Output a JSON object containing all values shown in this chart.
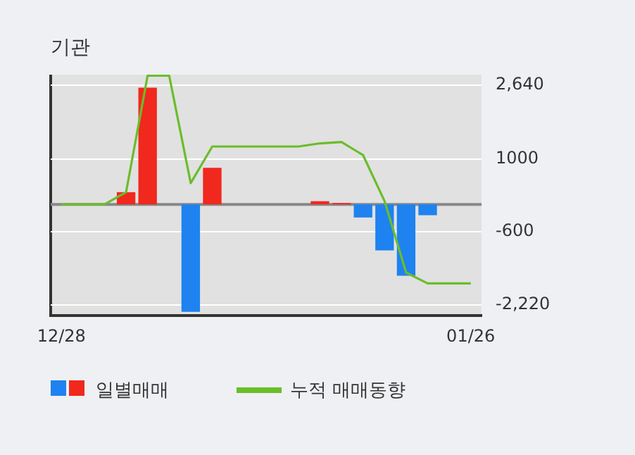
{
  "chart_data": {
    "type": "bar",
    "title": "기관",
    "categories": [
      "12/28",
      null,
      null,
      null,
      null,
      null,
      null,
      null,
      null,
      null,
      null,
      null,
      null,
      null,
      null,
      null,
      null,
      null,
      null,
      "01/26"
    ],
    "series": [
      {
        "name": "일별매매",
        "colors": [
          "#f0281e",
          "#f0281e",
          "#f0281e",
          "#f0281e",
          "#f0281e",
          "#f0281e",
          "#1e82f0",
          "#f0281e",
          "#f0281e",
          "#f0281e",
          "#f0281e",
          "#f0281e",
          "#f0281e",
          "#f0281e",
          "#1e82f0",
          "#1e82f0",
          "#1e82f0",
          "#1e82f0",
          "#f0281e",
          "#f0281e"
        ],
        "values": [
          0,
          0,
          0,
          270,
          2580,
          0,
          -2380,
          810,
          0,
          0,
          0,
          0,
          70,
          30,
          -290,
          -1020,
          -1580,
          -240,
          0,
          0
        ]
      },
      {
        "name": "누적 매매동향",
        "type": "line",
        "color": "#6bbd2b",
        "values": [
          0,
          0,
          0,
          270,
          2850,
          2850,
          470,
          1280,
          1280,
          1280,
          1280,
          1280,
          1350,
          1380,
          1090,
          70,
          -1510,
          -1750,
          -1750,
          -1750
        ]
      }
    ],
    "ylim": [
      -2460,
      2870
    ],
    "yticks": [
      {
        "value": 2640,
        "label": "2,640"
      },
      1000,
      -600,
      {
        "value": -2220,
        "label": "-2,220"
      }
    ],
    "ref_lines": [
      {
        "axis": "y",
        "value": 0,
        "color": "#888888"
      }
    ],
    "grid": "y",
    "legend": "bottom",
    "marker": "none"
  }
}
